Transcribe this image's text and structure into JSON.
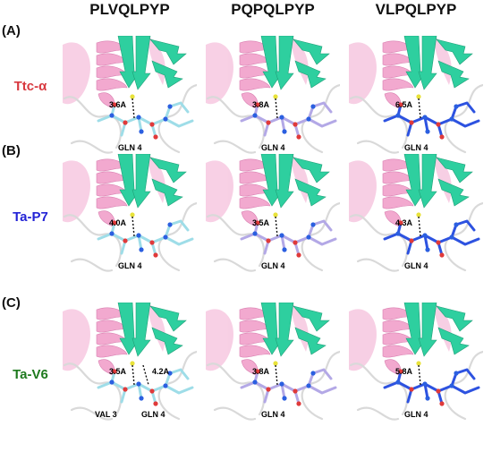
{
  "columns": [
    "PLVQLPYP",
    "PQPQLPYP",
    "VLPQLPYP"
  ],
  "rows": [
    {
      "tag": "(A)",
      "label": "Ttc-α",
      "label_color": "#d8393f",
      "panels": [
        {
          "distance": "3.6A",
          "residue": "GLN 4",
          "ligand_color": "#9edde8"
        },
        {
          "distance": "3.8A",
          "residue": "GLN 4",
          "ligand_color": "#b3a8e6"
        },
        {
          "distance": "6.5A",
          "residue": "GLN 4",
          "ligand_color": "#2d52e0"
        }
      ]
    },
    {
      "tag": "(B)",
      "label": "Ta-P7",
      "label_color": "#2323d6",
      "panels": [
        {
          "distance": "4.0A",
          "residue": "GLN 4",
          "ligand_color": "#9edde8"
        },
        {
          "distance": "3.5A",
          "residue": "GLN 4",
          "ligand_color": "#b3a8e6"
        },
        {
          "distance": "4.3A",
          "residue": "GLN 4",
          "ligand_color": "#2d52e0"
        }
      ]
    },
    {
      "tag": "(C)",
      "label": "Ta-V6",
      "label_color": "#1e7a1e",
      "panels": [
        {
          "distance": "3.5A",
          "distance2": "4.2A",
          "residue": "GLN 4",
          "residue2": "VAL 3",
          "ligand_color": "#9edde8"
        },
        {
          "distance": "3.8A",
          "residue": "GLN 4",
          "ligand_color": "#b3a8e6"
        },
        {
          "distance": "5.8A",
          "residue": "GLN 4",
          "ligand_color": "#2d52e0"
        }
      ]
    }
  ],
  "colors": {
    "helix": "#f2a9cf",
    "sheet": "#2ecf9f",
    "loop": "#d9d9d9"
  }
}
